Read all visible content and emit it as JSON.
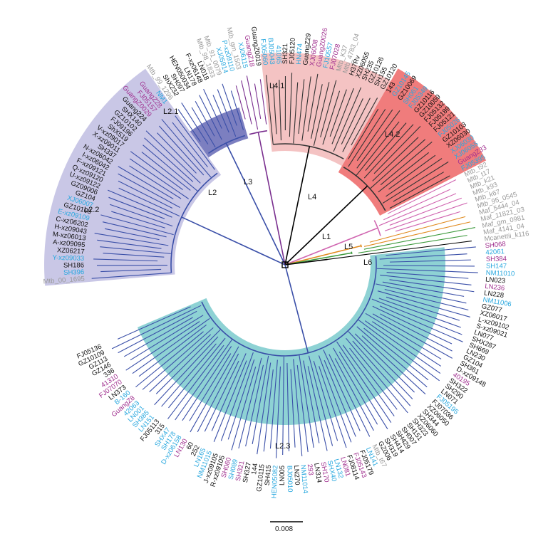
{
  "colors": {
    "black": "#111111",
    "cyan": "#29a8df",
    "purple": "#a0308f",
    "grey": "#999999",
    "branch": {
      "L2_2": "#3a4fa8",
      "L2_1": "#3a4fa8",
      "L2_3": "#3a4fa8",
      "L3": "#7a2f8f",
      "L4": "#d9402c",
      "L1": "#d065b0",
      "L5": "#e08a1e",
      "L6": "#3c9a3c",
      "root": "#000000"
    },
    "clade_fill": {
      "L2_1": "#7c7fc0",
      "L2_2": "#c9c7e6",
      "L2_3": "#8ed2d4",
      "L4_1": "#f4c3c3",
      "L4_2": "#f07c7c"
    }
  },
  "clades": [
    {
      "id": "L2_1",
      "label": "L2.1",
      "from": 9,
      "to": 17
    },
    {
      "id": "L2_2",
      "label": "L2.2",
      "from": 17,
      "to": 43
    },
    {
      "id": "L2_3",
      "label": "L2.3",
      "from": 55,
      "to": 136
    },
    {
      "id": "L4_1",
      "label": "L4.1",
      "from": 0,
      "to": 0
    },
    {
      "id": "L4_2",
      "label": "L4.2",
      "from": 0,
      "to": 0
    }
  ],
  "lineage_labels": {
    "L1": "L1",
    "L2": "L2",
    "L3": "L3",
    "L4": "L4",
    "L5": "L5",
    "L6": "L6",
    "L2_1": "L2.1",
    "L2_2": "L2.2",
    "L2_3": "L2.3",
    "L4_1": "L4.1",
    "L4_2": "L4.2"
  },
  "scale_bar": {
    "label": "0.008"
  },
  "leaves": [
    {
      "t": "Mtb_00_1695",
      "c": "grey",
      "g": "L2_2"
    },
    {
      "t": "SH396",
      "c": "cyan",
      "g": "L2_2"
    },
    {
      "t": "SH186",
      "c": "black",
      "g": "L2_2"
    },
    {
      "t": "Y-xz09033",
      "c": "cyan",
      "g": "L2_2"
    },
    {
      "t": "XZ06217",
      "c": "black",
      "g": "L2_2"
    },
    {
      "t": "A-xz09095",
      "c": "black",
      "g": "L2_2"
    },
    {
      "t": "M-xz06013",
      "c": "black",
      "g": "L2_2"
    },
    {
      "t": "H-xz09043",
      "c": "black",
      "g": "L2_2"
    },
    {
      "t": "C-xz06202",
      "c": "black",
      "g": "L2_2"
    },
    {
      "t": "E-xz09109",
      "c": "cyan",
      "g": "L2_2"
    },
    {
      "t": "GZ10108",
      "c": "black",
      "g": "L2_2"
    },
    {
      "t": "XJ06007",
      "c": "cyan",
      "g": "L2_2"
    },
    {
      "t": "GZ104",
      "c": "black",
      "g": "L2_2"
    },
    {
      "t": "GZ09006",
      "c": "black",
      "g": "L2_2"
    },
    {
      "t": "U-xz09122",
      "c": "black",
      "g": "L2_2"
    },
    {
      "t": "Q-xz09120",
      "c": "black",
      "g": "L2_2"
    },
    {
      "t": "F-xz09121",
      "c": "black",
      "g": "L2_2"
    },
    {
      "t": "I-xz06042",
      "c": "black",
      "g": "L2_2"
    },
    {
      "t": "N-xz06042",
      "c": "black",
      "g": "L2_2"
    },
    {
      "t": "SH337",
      "c": "black",
      "g": "L2_2"
    },
    {
      "t": "X-xz09011",
      "c": "black",
      "g": "L2_2"
    },
    {
      "t": "V-xz09017",
      "c": "black",
      "g": "L2_2"
    },
    {
      "t": "ShX519",
      "c": "black",
      "g": "L2_2"
    },
    {
      "t": "FJ09196",
      "c": "black",
      "g": "L2_2"
    },
    {
      "t": "GZ10102",
      "c": "black",
      "g": "L2_2"
    },
    {
      "t": "SHX140",
      "c": "black",
      "g": "L2_2"
    },
    {
      "t": "Guang224",
      "c": "black",
      "g": "L2_2"
    },
    {
      "t": "GuangZ0029",
      "c": "purple",
      "g": "L2_2"
    },
    {
      "t": "FJ05157",
      "c": "purple",
      "g": "L2_2"
    },
    {
      "t": "GuangZ28",
      "c": "purple",
      "g": "L2_2"
    },
    {
      "t": "NM1",
      "c": "cyan",
      "g": "L2_2"
    },
    {
      "t": "Mtb_99_1296",
      "c": "grey",
      "g": "L2_1"
    },
    {
      "t": "ShX232",
      "c": "black",
      "g": "L2_1"
    },
    {
      "t": "SH097",
      "c": "black",
      "g": "L2_1"
    },
    {
      "t": "HEN050034",
      "c": "black",
      "g": "L2_1"
    },
    {
      "t": "LN178",
      "c": "black",
      "g": "L2_1"
    },
    {
      "t": "F-xz06148",
      "c": "black",
      "g": "L2_1"
    },
    {
      "t": "LN018",
      "c": "black",
      "g": "L2_1"
    },
    {
      "t": "Mtb_98_1833",
      "c": "grey",
      "g": "L2_1"
    },
    {
      "t": "Mtb_91_0079",
      "c": "grey",
      "g": "L2_1"
    },
    {
      "t": "XJ05914",
      "c": "cyan",
      "g": "L2_1"
    },
    {
      "t": "P-xz09110",
      "c": "cyan",
      "g": "L3"
    },
    {
      "t": "Mtb_gm_1503",
      "c": "grey",
      "g": "L3"
    },
    {
      "t": "XJ06115",
      "c": "cyan",
      "g": "L3"
    },
    {
      "t": "GuangZ18",
      "c": "purple",
      "g": "L3"
    },
    {
      "t": "GuangZ0019",
      "c": "black",
      "g": "L3"
    },
    {
      "t": "FJ05060",
      "c": "cyan",
      "g": "L4_1"
    },
    {
      "t": "BJ05043",
      "c": "cyan",
      "g": "L4_1"
    },
    {
      "t": "41065",
      "c": "cyan",
      "g": "L4_1"
    },
    {
      "t": "SH321",
      "c": "black",
      "g": "L4_1"
    },
    {
      "t": "FJ05120",
      "c": "black",
      "g": "L4_1"
    },
    {
      "t": "HN474",
      "c": "cyan",
      "g": "L4_1"
    },
    {
      "t": "GuangZ29",
      "c": "black",
      "g": "L4_1"
    },
    {
      "t": "XJ06008",
      "c": "purple",
      "g": "L4_1"
    },
    {
      "t": "GuangZ0026",
      "c": "purple",
      "g": "L4_1"
    },
    {
      "t": "FJ10557",
      "c": "cyan",
      "g": "L4_1"
    },
    {
      "t": "FJ07028",
      "c": "purple",
      "g": "L4_1"
    },
    {
      "t": "Mtb_K37",
      "c": "grey",
      "g": "L4_1"
    },
    {
      "t": "Mtb_4783_04",
      "c": "grey",
      "g": "L4_1"
    },
    {
      "t": "H37Rv",
      "c": "black",
      "g": "L4_1"
    },
    {
      "t": "XZ06055",
      "c": "black",
      "g": "L4_1"
    },
    {
      "t": "SH235",
      "c": "black",
      "g": "L4_1"
    },
    {
      "t": "GZ10126",
      "c": "black",
      "g": "L4_1"
    },
    {
      "t": "SH155",
      "c": "black",
      "g": "L4_1"
    },
    {
      "t": "GZ10120",
      "c": "black",
      "g": "L4_1"
    },
    {
      "t": "143",
      "c": "black",
      "g": "L4_2"
    },
    {
      "t": "GZ10145",
      "c": "cyan",
      "g": "L4_2"
    },
    {
      "t": "GZ10069",
      "c": "black",
      "g": "L4_2"
    },
    {
      "t": "SH061",
      "c": "cyan",
      "g": "L4_2"
    },
    {
      "t": "FJ05349",
      "c": "cyan",
      "g": "L4_2"
    },
    {
      "t": "GZ10116",
      "c": "black",
      "g": "L4_2"
    },
    {
      "t": "GZ10059",
      "c": "black",
      "g": "L4_2"
    },
    {
      "t": "FJ05132",
      "c": "black",
      "g": "L4_2"
    },
    {
      "t": "FJ05189",
      "c": "black",
      "g": "L4_2"
    },
    {
      "t": "FJ05121",
      "c": "black",
      "g": "L4_2"
    },
    {
      "t": "FJ05026",
      "c": "cyan",
      "g": "L4_2"
    },
    {
      "t": "GZ10103",
      "c": "black",
      "g": "L4_2"
    },
    {
      "t": "XZ06030",
      "c": "black",
      "g": "L4_2"
    },
    {
      "t": "XJ06030",
      "c": "cyan",
      "g": "L4_2"
    },
    {
      "t": "XJ06055",
      "c": "cyan",
      "g": "L4_2"
    },
    {
      "t": "GuangZ33",
      "c": "purple",
      "g": "L4_2"
    },
    {
      "t": "FJ05395",
      "c": "cyan",
      "g": "L4_2"
    },
    {
      "t": "Mtb_t92",
      "c": "grey",
      "g": "L1"
    },
    {
      "t": "Mtb_t17",
      "c": "grey",
      "g": "L1"
    },
    {
      "t": "Mtb_k21",
      "c": "grey",
      "g": "L1"
    },
    {
      "t": "Mtb_k93",
      "c": "grey",
      "g": "L1"
    },
    {
      "t": "Mtb_k67",
      "c": "grey",
      "g": "L1"
    },
    {
      "t": "Mtb_95_0545",
      "c": "grey",
      "g": "L1"
    },
    {
      "t": "Maf_5444_04",
      "c": "grey",
      "g": "L5"
    },
    {
      "t": "Maf_11821_03",
      "c": "grey",
      "g": "L5"
    },
    {
      "t": "Maf_gm_0981",
      "c": "grey",
      "g": "L6"
    },
    {
      "t": "Maf_4141_04",
      "c": "grey",
      "g": "L6"
    },
    {
      "t": "Mcanettii_k116",
      "c": "grey",
      "g": "root"
    },
    {
      "t": "SH068",
      "c": "purple",
      "g": "L2_3"
    },
    {
      "t": "42061",
      "c": "cyan",
      "g": "L2_3"
    },
    {
      "t": "SH384",
      "c": "purple",
      "g": "L2_3"
    },
    {
      "t": "SH147",
      "c": "cyan",
      "g": "L2_3"
    },
    {
      "t": "NM11010",
      "c": "cyan",
      "g": "L2_3"
    },
    {
      "t": "LN023",
      "c": "black",
      "g": "L2_3"
    },
    {
      "t": "LN236",
      "c": "purple",
      "g": "L2_3"
    },
    {
      "t": "LN228",
      "c": "black",
      "g": "L2_3"
    },
    {
      "t": "NM11006",
      "c": "cyan",
      "g": "L2_3"
    },
    {
      "t": "GZ077",
      "c": "black",
      "g": "L2_3"
    },
    {
      "t": "XZ06017",
      "c": "black",
      "g": "L2_3"
    },
    {
      "t": "L-xz09102",
      "c": "black",
      "g": "L2_3"
    },
    {
      "t": "S-xz09021",
      "c": "black",
      "g": "L2_3"
    },
    {
      "t": "LN077",
      "c": "black",
      "g": "L2_3"
    },
    {
      "t": "SHX287",
      "c": "black",
      "g": "L2_3"
    },
    {
      "t": "SH669",
      "c": "black",
      "g": "L2_3"
    },
    {
      "t": "LN230",
      "c": "black",
      "g": "L2_3"
    },
    {
      "t": "GZ104",
      "c": "black",
      "g": "L2_3"
    },
    {
      "t": "SH361",
      "c": "black",
      "g": "L2_3"
    },
    {
      "t": "D-xz09148",
      "c": "black",
      "g": "L2_3"
    },
    {
      "t": "40195",
      "c": "purple",
      "g": "L2_3"
    },
    {
      "t": "SH322",
      "c": "black",
      "g": "L2_3"
    },
    {
      "t": "SH290",
      "c": "black",
      "g": "L2_3"
    },
    {
      "t": "LN071",
      "c": "black",
      "g": "L2_3"
    },
    {
      "t": "FJ05195",
      "c": "cyan",
      "g": "L2_3"
    },
    {
      "t": "FJ07036",
      "c": "black",
      "g": "L2_3"
    },
    {
      "t": "XZ06050",
      "c": "black",
      "g": "L2_3"
    },
    {
      "t": "SH344",
      "c": "black",
      "g": "L2_3"
    },
    {
      "t": "XZ06060",
      "c": "black",
      "g": "L2_3"
    },
    {
      "t": "SH323",
      "c": "black",
      "g": "L2_3"
    },
    {
      "t": "SH151",
      "c": "black",
      "g": "L2_3"
    },
    {
      "t": "SH007",
      "c": "black",
      "g": "L2_3"
    },
    {
      "t": "SH429",
      "c": "black",
      "g": "L2_3"
    },
    {
      "t": "SH414",
      "c": "black",
      "g": "L2_3"
    },
    {
      "t": "SH319",
      "c": "black",
      "g": "L2_3"
    },
    {
      "t": "GZ006",
      "c": "black",
      "g": "L2_3"
    },
    {
      "t": "Mtb_t67",
      "c": "grey",
      "g": "L2_3"
    },
    {
      "t": "LN141",
      "c": "cyan",
      "g": "L2_3"
    },
    {
      "t": "FJ05179",
      "c": "black",
      "g": "L2_3"
    },
    {
      "t": "FJ05143",
      "c": "purple",
      "g": "L2_3"
    },
    {
      "t": "FJ08114",
      "c": "black",
      "g": "L2_3"
    },
    {
      "t": "LN081",
      "c": "purple",
      "g": "L2_3"
    },
    {
      "t": "LN132",
      "c": "cyan",
      "g": "L2_3"
    },
    {
      "t": "SHX40",
      "c": "cyan",
      "g": "L2_3"
    },
    {
      "t": "SH170",
      "c": "purple",
      "g": "L2_3"
    },
    {
      "t": "LN314",
      "c": "black",
      "g": "L2_3"
    },
    {
      "t": "293",
      "c": "purple",
      "g": "L2_3"
    },
    {
      "t": "NM11014",
      "c": "cyan",
      "g": "L2_3"
    },
    {
      "t": "LN270",
      "c": "black",
      "g": "L2_3"
    },
    {
      "t": "BJ05010",
      "c": "cyan",
      "g": "L2_3"
    },
    {
      "t": "LN005",
      "c": "black",
      "g": "L2_3"
    },
    {
      "t": "HEN05082",
      "c": "cyan",
      "g": "L2_3"
    },
    {
      "t": "SH415",
      "c": "black",
      "g": "L2_3"
    },
    {
      "t": "GZ10115",
      "c": "black",
      "g": "L2_3"
    },
    {
      "t": "144",
      "c": "black",
      "g": "L2_3"
    },
    {
      "t": "SH327",
      "c": "black",
      "g": "L2_3"
    },
    {
      "t": "SH321",
      "c": "purple",
      "g": "L2_3"
    },
    {
      "t": "SH089",
      "c": "cyan",
      "g": "L2_3"
    },
    {
      "t": "SH060",
      "c": "purple",
      "g": "L2_3"
    },
    {
      "t": "R-xz09105",
      "c": "black",
      "g": "L2_3"
    },
    {
      "t": "J-xz09105",
      "c": "black",
      "g": "L2_3"
    },
    {
      "t": "NM11015",
      "c": "cyan",
      "g": "L2_3"
    },
    {
      "t": "LN165",
      "c": "cyan",
      "g": "L2_3"
    },
    {
      "t": "252",
      "c": "black",
      "g": "L2_3"
    },
    {
      "t": "60",
      "c": "black",
      "g": "L2_3"
    },
    {
      "t": "LN130",
      "c": "purple",
      "g": "L2_3"
    },
    {
      "t": "D-xz06158",
      "c": "cyan",
      "g": "L2_3"
    },
    {
      "t": "SH178",
      "c": "cyan",
      "g": "L2_3"
    },
    {
      "t": "SHX47",
      "c": "cyan",
      "g": "L2_3"
    },
    {
      "t": "315",
      "c": "black",
      "g": "L2_3"
    },
    {
      "t": "FJ05113",
      "c": "black",
      "g": "L2_3"
    },
    {
      "t": "LN151",
      "c": "cyan",
      "g": "L2_3"
    },
    {
      "t": "SH385",
      "c": "cyan",
      "g": "L2_3"
    },
    {
      "t": "LN001",
      "c": "cyan",
      "g": "L2_3"
    },
    {
      "t": "42063",
      "c": "cyan",
      "g": "L2_3"
    },
    {
      "t": "GuangZ8",
      "c": "purple",
      "g": "L2_3"
    },
    {
      "t": "B-160",
      "c": "cyan",
      "g": "L2_3"
    },
    {
      "t": "LN373",
      "c": "black",
      "g": "L2_3"
    },
    {
      "t": "FJ07070",
      "c": "purple",
      "g": "L2_3"
    },
    {
      "t": "41310",
      "c": "purple",
      "g": "L2_3"
    },
    {
      "t": "336",
      "c": "black",
      "g": "L2_3"
    },
    {
      "t": "GZ146",
      "c": "black",
      "g": "L2_3"
    },
    {
      "t": "GZ113",
      "c": "black",
      "g": "L2_3"
    },
    {
      "t": "GZ10109",
      "c": "black",
      "g": "L2_3"
    },
    {
      "t": "FJ05136",
      "c": "black",
      "g": "L2_3"
    }
  ]
}
